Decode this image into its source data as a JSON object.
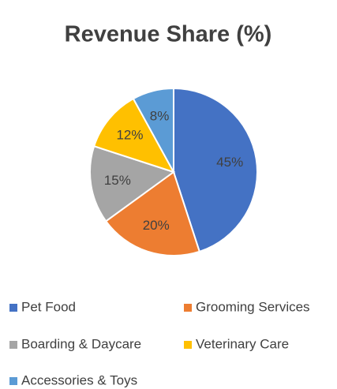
{
  "chart_data": {
    "type": "pie",
    "title": "Revenue Share (%)",
    "categories": [
      "Pet Food",
      "Grooming Services",
      "Boarding & Daycare",
      "Veterinary Care",
      "Accessories & Toys"
    ],
    "values": [
      45,
      20,
      15,
      12,
      8
    ],
    "value_labels": [
      "45%",
      "20%",
      "15%",
      "12%",
      "8%"
    ],
    "colors": [
      "#4472c4",
      "#ed7d31",
      "#a5a5a5",
      "#ffc000",
      "#5b9bd5"
    ],
    "legend": "bottom"
  }
}
